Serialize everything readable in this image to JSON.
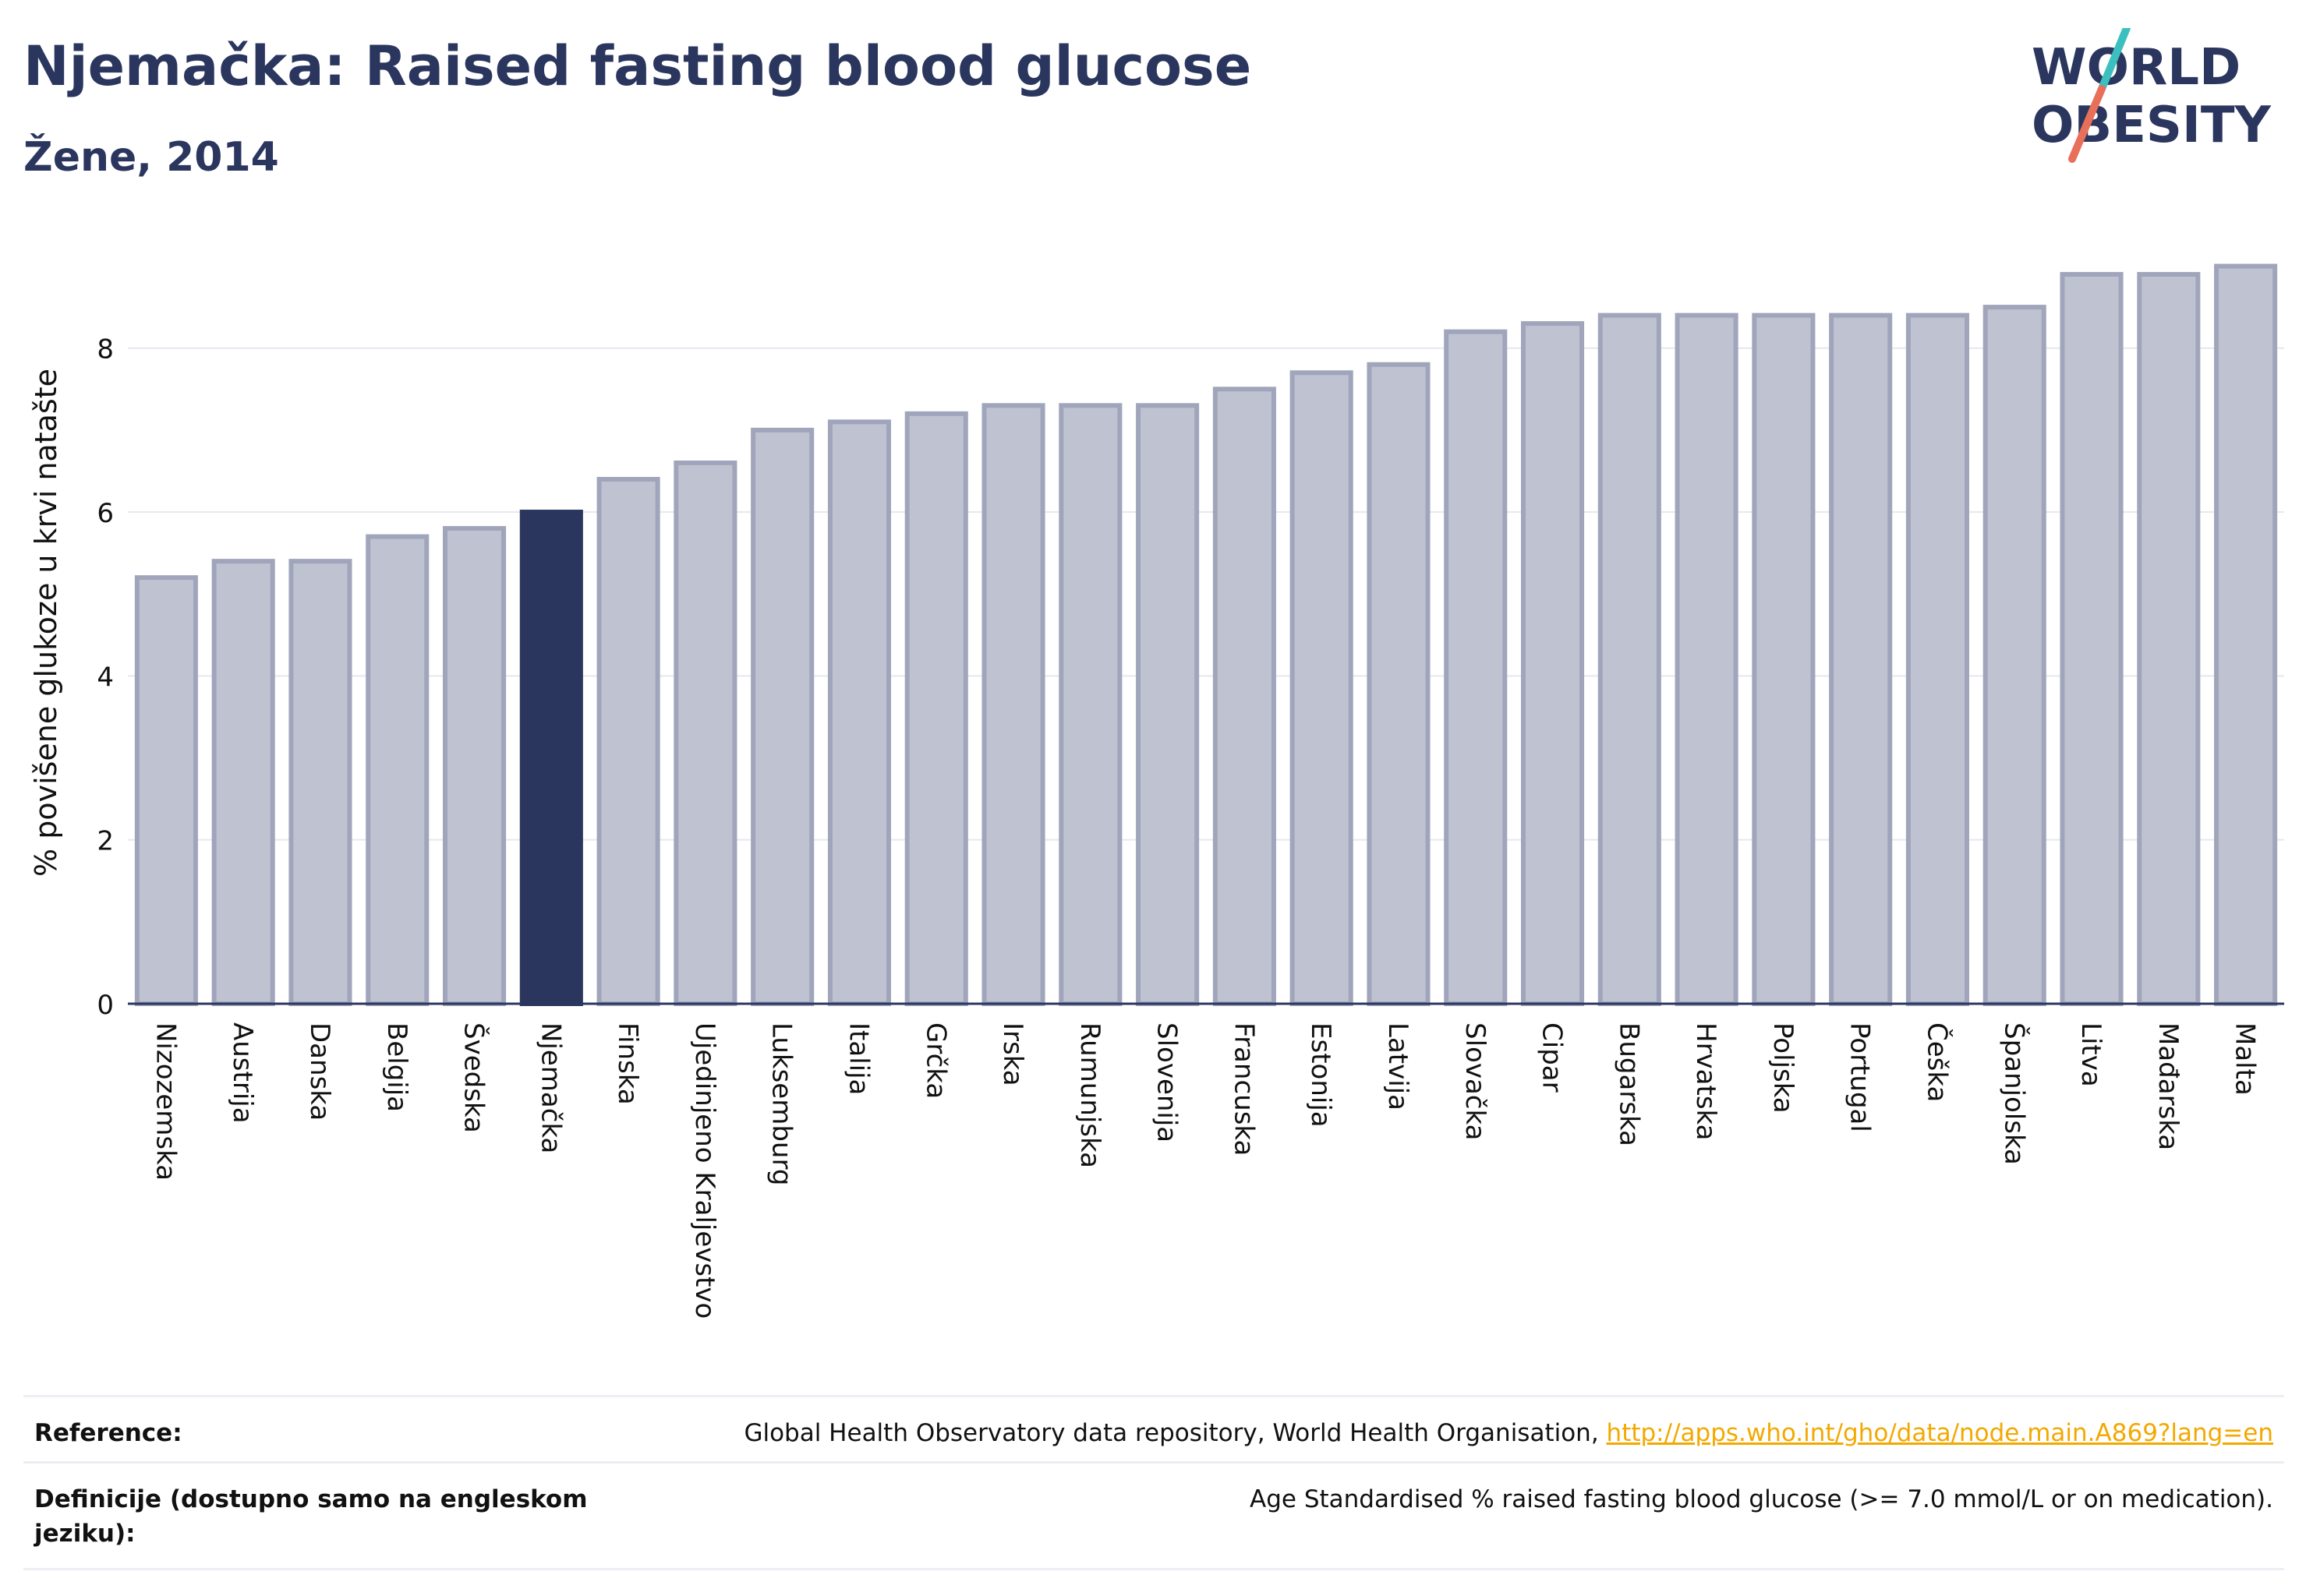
{
  "header": {
    "title": "Njemačka: Raised fasting blood glucose",
    "subtitle": "Žene, 2014"
  },
  "logo": {
    "line1": "WORLD",
    "line2": "OBESITY",
    "colors": {
      "text": "#2b365f",
      "slash_top": "#3bbfbf",
      "slash_bottom": "#e8705a"
    }
  },
  "chart_data": {
    "type": "bar",
    "ylabel": "% povišene glukoze u krvi natašte",
    "ylim": [
      0,
      9.3
    ],
    "yticks": [
      0,
      2,
      4,
      6,
      8
    ],
    "grid": true,
    "highlight": "Njemačka",
    "colors": {
      "bar": "#bfc3d1",
      "bar_border": "#a0a5bb",
      "highlight": "#2b365f"
    },
    "categories": [
      "Nizozemska",
      "Austrija",
      "Danska",
      "Belgija",
      "Švedska",
      "Njemačka",
      "Finska",
      "Ujedinjeno Kraljevstvo",
      "Luksemburg",
      "Italija",
      "Grčka",
      "Irska",
      "Rumunjska",
      "Slovenija",
      "Francuska",
      "Estonija",
      "Latvija",
      "Slovačka",
      "Cipar",
      "Bugarska",
      "Hrvatska",
      "Poljska",
      "Portugal",
      "Češka",
      "Španjolska",
      "Litva",
      "Mađarska",
      "Malta"
    ],
    "values": [
      5.2,
      5.4,
      5.4,
      5.7,
      5.8,
      6.0,
      6.4,
      6.6,
      7.0,
      7.1,
      7.2,
      7.3,
      7.3,
      7.3,
      7.5,
      7.7,
      7.8,
      8.2,
      8.3,
      8.4,
      8.4,
      8.4,
      8.4,
      8.4,
      8.5,
      8.9,
      8.9,
      9.0
    ]
  },
  "reference": {
    "label": "Reference:",
    "text": "Global Health Observatory data repository, World Health Organisation, ",
    "link": "http://apps.who.int/gho/data/node.main.A869?lang=en"
  },
  "definition": {
    "label": "Definicije (dostupno samo na engleskom jeziku):",
    "text": "Age Standardised % raised fasting blood glucose (>= 7.0 mmol/L or on medication)."
  }
}
